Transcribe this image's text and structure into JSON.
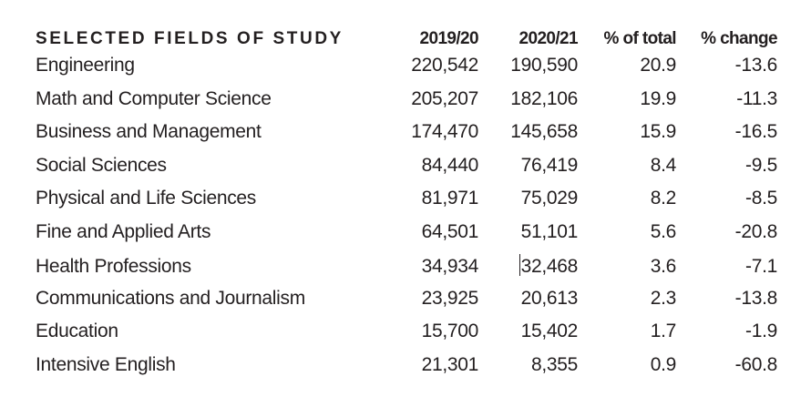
{
  "table": {
    "headers": {
      "field": "SELECTED FIELDS OF STUDY",
      "year1": "2019/20",
      "year2": "2020/21",
      "pct_total": "% of total",
      "pct_change": "% change"
    },
    "rows": [
      {
        "field": "Engineering",
        "year1": "220,542",
        "year2": "190,590",
        "pct_total": "20.9",
        "pct_change": "-13.6"
      },
      {
        "field": "Math and Computer Science",
        "year1": "205,207",
        "year2": "182,106",
        "pct_total": "19.9",
        "pct_change": "-11.3"
      },
      {
        "field": "Business and Management",
        "year1": "174,470",
        "year2": "145,658",
        "pct_total": "15.9",
        "pct_change": "-16.5"
      },
      {
        "field": "Social Sciences",
        "year1": "84,440",
        "year2": "76,419",
        "pct_total": "8.4",
        "pct_change": "-9.5"
      },
      {
        "field": "Physical and Life Sciences",
        "year1": "81,971",
        "year2": "75,029",
        "pct_total": "8.2",
        "pct_change": "-8.5"
      },
      {
        "field": "Fine and Applied Arts",
        "year1": "64,501",
        "year2": "51,101",
        "pct_total": "5.6",
        "pct_change": "-20.8"
      },
      {
        "field": "Health Professions",
        "year1": "34,934",
        "year2": "32,468",
        "pct_total": "3.6",
        "pct_change": "-7.1"
      },
      {
        "field": "Communications and Journalism",
        "year1": "23,925",
        "year2": "20,613",
        "pct_total": "2.3",
        "pct_change": "-13.8"
      },
      {
        "field": "Education",
        "year1": "15,700",
        "year2": "15,402",
        "pct_total": "1.7",
        "pct_change": "-1.9"
      },
      {
        "field": "Intensive English",
        "year1": "21,301",
        "year2": "8,355",
        "pct_total": "0.9",
        "pct_change": "-60.8"
      }
    ]
  }
}
